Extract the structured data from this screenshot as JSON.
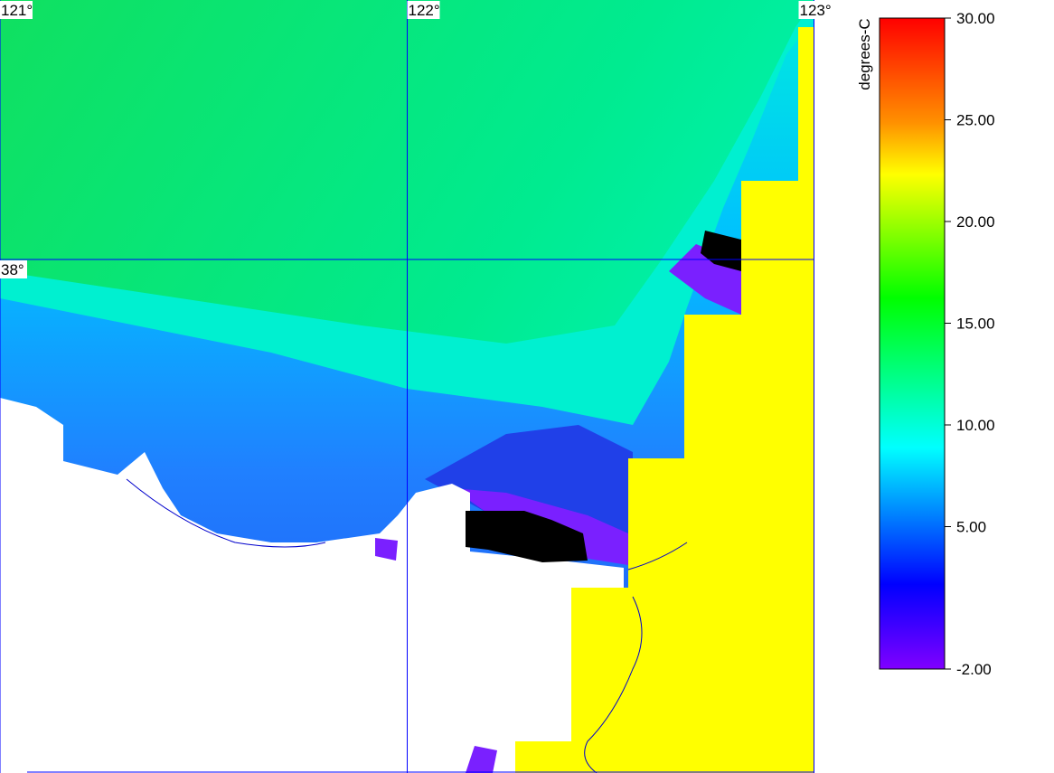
{
  "map": {
    "lon_labels": [
      {
        "value": 121,
        "label": "121°"
      },
      {
        "value": 122,
        "label": "122°"
      },
      {
        "value": 123,
        "label": "123°"
      }
    ],
    "lat_labels": [
      {
        "value": 38,
        "label": "38°"
      }
    ]
  },
  "colorbar": {
    "unit": "degrees-C",
    "ticks": [
      {
        "value": 30,
        "label": "30.00"
      },
      {
        "value": 25,
        "label": "25.00"
      },
      {
        "value": 20,
        "label": "20.00"
      },
      {
        "value": 15,
        "label": "15.00"
      },
      {
        "value": 10,
        "label": "10.00"
      },
      {
        "value": 5,
        "label": "5.00"
      },
      {
        "value": -2,
        "label": "-2.00"
      }
    ]
  }
}
